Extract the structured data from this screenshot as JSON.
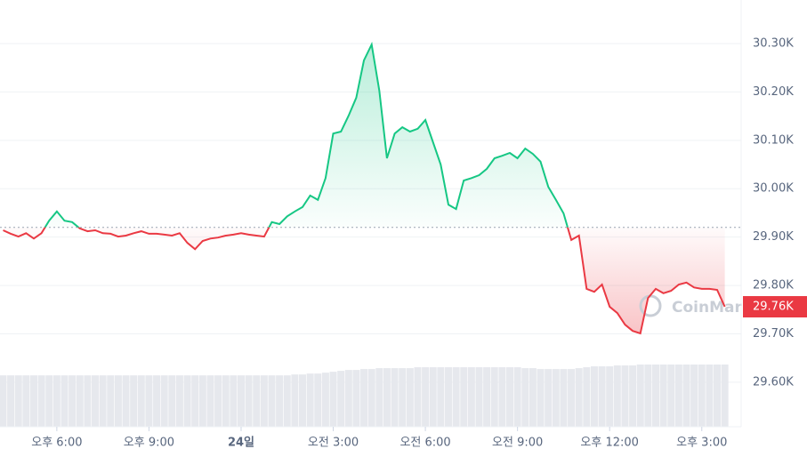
{
  "chart_data": {
    "type": "line",
    "watermark": "CoinMarketCap",
    "baseline": 29920,
    "up_color": "#16c784",
    "down_color": "#ea3943",
    "grid": true,
    "xlim": [
      16.15,
      40.05
    ],
    "ylim": [
      29508,
      30390
    ],
    "xticks": [
      {
        "value": 18,
        "label": "오후 6:00"
      },
      {
        "value": 21,
        "label": "오후 9:00"
      },
      {
        "value": 24,
        "label": "24일"
      },
      {
        "value": 27,
        "label": "오전 3:00"
      },
      {
        "value": 30,
        "label": "오전 6:00"
      },
      {
        "value": 33,
        "label": "오전 9:00"
      },
      {
        "value": 36,
        "label": "오후 12:00"
      },
      {
        "value": 39,
        "label": "오후 3:00"
      }
    ],
    "yticks": [
      {
        "value": 29600,
        "label": "29.60K"
      },
      {
        "value": 29700,
        "label": "29.70K"
      },
      {
        "value": 29800,
        "label": "29.80K"
      },
      {
        "value": 29900,
        "label": "29.90K"
      },
      {
        "value": 30000,
        "label": "30.00K"
      },
      {
        "value": 30100,
        "label": "30.10K"
      },
      {
        "value": 30200,
        "label": "30.20K"
      },
      {
        "value": 30300,
        "label": "30.30K"
      }
    ],
    "last_price": {
      "value": 29756,
      "label": "29.76K"
    },
    "x": [
      16.25,
      16.5,
      16.75,
      17,
      17.25,
      17.5,
      17.75,
      18,
      18.25,
      18.5,
      18.75,
      19,
      19.25,
      19.5,
      19.75,
      20,
      20.25,
      20.5,
      20.75,
      21,
      21.25,
      21.5,
      21.75,
      22,
      22.25,
      22.5,
      22.75,
      23,
      23.25,
      23.5,
      23.75,
      24,
      24.25,
      24.5,
      24.75,
      25,
      25.25,
      25.5,
      25.75,
      26,
      26.25,
      26.5,
      26.75,
      27,
      27.25,
      27.5,
      27.75,
      28,
      28.25,
      28.5,
      28.75,
      29,
      29.25,
      29.5,
      29.75,
      30,
      30.25,
      30.5,
      30.75,
      31,
      31.25,
      31.5,
      31.75,
      32,
      32.25,
      32.5,
      32.75,
      33,
      33.25,
      33.5,
      33.75,
      34,
      34.25,
      34.5,
      34.75,
      35,
      35.25,
      35.5,
      35.75,
      36,
      36.25,
      36.5,
      36.75,
      37,
      37.25,
      37.5,
      37.75,
      38,
      38.25,
      38.5,
      38.75,
      39,
      39.25,
      39.5,
      39.75
    ],
    "values": [
      29914,
      29907,
      29901,
      29908,
      29897,
      29908,
      29934,
      29953,
      29934,
      29931,
      29918,
      29912,
      29914,
      29908,
      29907,
      29901,
      29903,
      29908,
      29912,
      29907,
      29907,
      29905,
      29903,
      29908,
      29888,
      29875,
      29892,
      29897,
      29899,
      29903,
      29905,
      29908,
      29905,
      29903,
      29901,
      29931,
      29927,
      29943,
      29953,
      29962,
      29986,
      29977,
      30022,
      30114,
      30118,
      30151,
      30188,
      30265,
      30298,
      30203,
      30063,
      30114,
      30127,
      30118,
      30124,
      30142,
      30096,
      30050,
      29967,
      29958,
      30017,
      30022,
      30028,
      30041,
      30063,
      30068,
      30074,
      30063,
      30083,
      30072,
      30056,
      30004,
      29977,
      29949,
      29894,
      29903,
      29793,
      29787,
      29802,
      29756,
      29743,
      29719,
      29706,
      29701,
      29774,
      29793,
      29784,
      29789,
      29802,
      29806,
      29796,
      29793,
      29793,
      29791,
      29756
    ],
    "volume": [
      57,
      57,
      57,
      57,
      57,
      57,
      57,
      57,
      57,
      57,
      57,
      57,
      57,
      57,
      57,
      57,
      57,
      57,
      57,
      57,
      57,
      57,
      57,
      57,
      57,
      57,
      57,
      57,
      57,
      57,
      57,
      57,
      57,
      57,
      57,
      57,
      57,
      57,
      58,
      58,
      59,
      59,
      60,
      61,
      62,
      63,
      63,
      64,
      64,
      65,
      65,
      65,
      65,
      65,
      66,
      66,
      66,
      66,
      66,
      66,
      66,
      66,
      66,
      66,
      66,
      66,
      66,
      66,
      65,
      65,
      64,
      64,
      64,
      64,
      64,
      65,
      66,
      67,
      67,
      67,
      68,
      68,
      68,
      69,
      69,
      69,
      69,
      69,
      69,
      69,
      69,
      69,
      69,
      69,
      69
    ]
  }
}
